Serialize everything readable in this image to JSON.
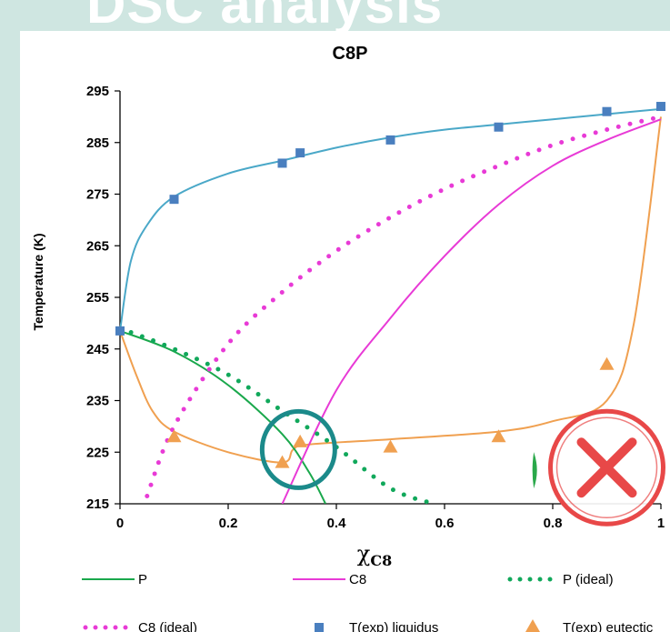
{
  "slide": {
    "title": "DSC analysis"
  },
  "chart_data": {
    "type": "line",
    "title": "C8P",
    "xlabel": "χC8",
    "ylabel": "Temperature (K)",
    "xlim": [
      0,
      1
    ],
    "ylim": [
      215,
      295
    ],
    "xticks": [
      "0",
      "0.2",
      "0.4",
      "0.6",
      "0.8",
      "1"
    ],
    "yticks": [
      "215",
      "225",
      "235",
      "245",
      "255",
      "265",
      "275",
      "285",
      "295"
    ],
    "grid": false,
    "legend_position": "bottom",
    "series": [
      {
        "name": "P",
        "color": "#1aa84c",
        "style": "solid",
        "x": [
          0,
          0.1,
          0.2,
          0.3,
          0.35,
          0.38
        ],
        "y": [
          248.5,
          244.5,
          238,
          228.5,
          221,
          215
        ]
      },
      {
        "name": "C8",
        "color": "#e83ad6",
        "style": "solid",
        "x": [
          0.3,
          0.4,
          0.5,
          0.6,
          0.7,
          0.8,
          0.9,
          1.0
        ],
        "y": [
          215,
          237,
          251,
          263,
          273,
          280.5,
          285.5,
          289.5
        ]
      },
      {
        "name": "P (ideal)",
        "color": "#11a85b",
        "style": "dotted",
        "x": [
          0,
          0.1,
          0.2,
          0.3,
          0.4,
          0.5,
          0.58
        ],
        "y": [
          249,
          245,
          240,
          233,
          226,
          218,
          215
        ]
      },
      {
        "name": "C8 (ideal)",
        "color": "#e83ad6",
        "style": "dotted",
        "x": [
          0.05,
          0.1,
          0.2,
          0.3,
          0.4,
          0.5,
          0.6,
          0.7,
          0.8,
          0.9,
          1.0
        ],
        "y": [
          216.5,
          230,
          246,
          256,
          264,
          270.5,
          276,
          280.5,
          284.5,
          287.5,
          290
        ]
      },
      {
        "name": "T(exp) liquidus",
        "color": "#4a7fbf",
        "style": "square",
        "x": [
          0,
          0.1,
          0.3,
          0.333,
          0.5,
          0.7,
          0.9,
          1.0
        ],
        "y": [
          248.5,
          274,
          281,
          283,
          285.5,
          288,
          291,
          292
        ]
      },
      {
        "name": "T(exp) eutectic",
        "color": "#f0a050",
        "style": "triangle",
        "x": [
          0.1,
          0.3,
          0.333,
          0.5,
          0.7,
          0.9
        ],
        "y": [
          228,
          223,
          227,
          226,
          228,
          242
        ]
      }
    ],
    "fit_curves": [
      {
        "color": "#4aa8c8",
        "x": [
          0,
          0.02,
          0.05,
          0.1,
          0.2,
          0.3,
          0.4,
          0.5,
          0.6,
          0.7,
          0.8,
          0.9,
          1.0
        ],
        "y": [
          248.5,
          262,
          269,
          274.5,
          279,
          281.5,
          284,
          286,
          287.5,
          288.5,
          289.5,
          290.5,
          291.5
        ]
      },
      {
        "color": "#f0a050",
        "x": [
          0,
          0.03,
          0.06,
          0.1,
          0.2,
          0.3,
          0.32,
          0.35,
          0.5,
          0.7,
          0.8,
          0.9,
          0.95,
          1.0
        ],
        "y": [
          248.5,
          240,
          233,
          229,
          225,
          223,
          225.5,
          226.5,
          227.5,
          229,
          231,
          235,
          250,
          290
        ]
      }
    ]
  },
  "annotations": [
    {
      "kind": "circle",
      "color": "#1b8a8a",
      "cx": 0.33,
      "cy": 225.5
    },
    {
      "kind": "cross-stamp",
      "color": "#e84848",
      "cx": 0.9,
      "cy": 222
    },
    {
      "kind": "leaf",
      "color": "#2aa84a",
      "cx": 0.765,
      "cy": 221.5
    }
  ]
}
